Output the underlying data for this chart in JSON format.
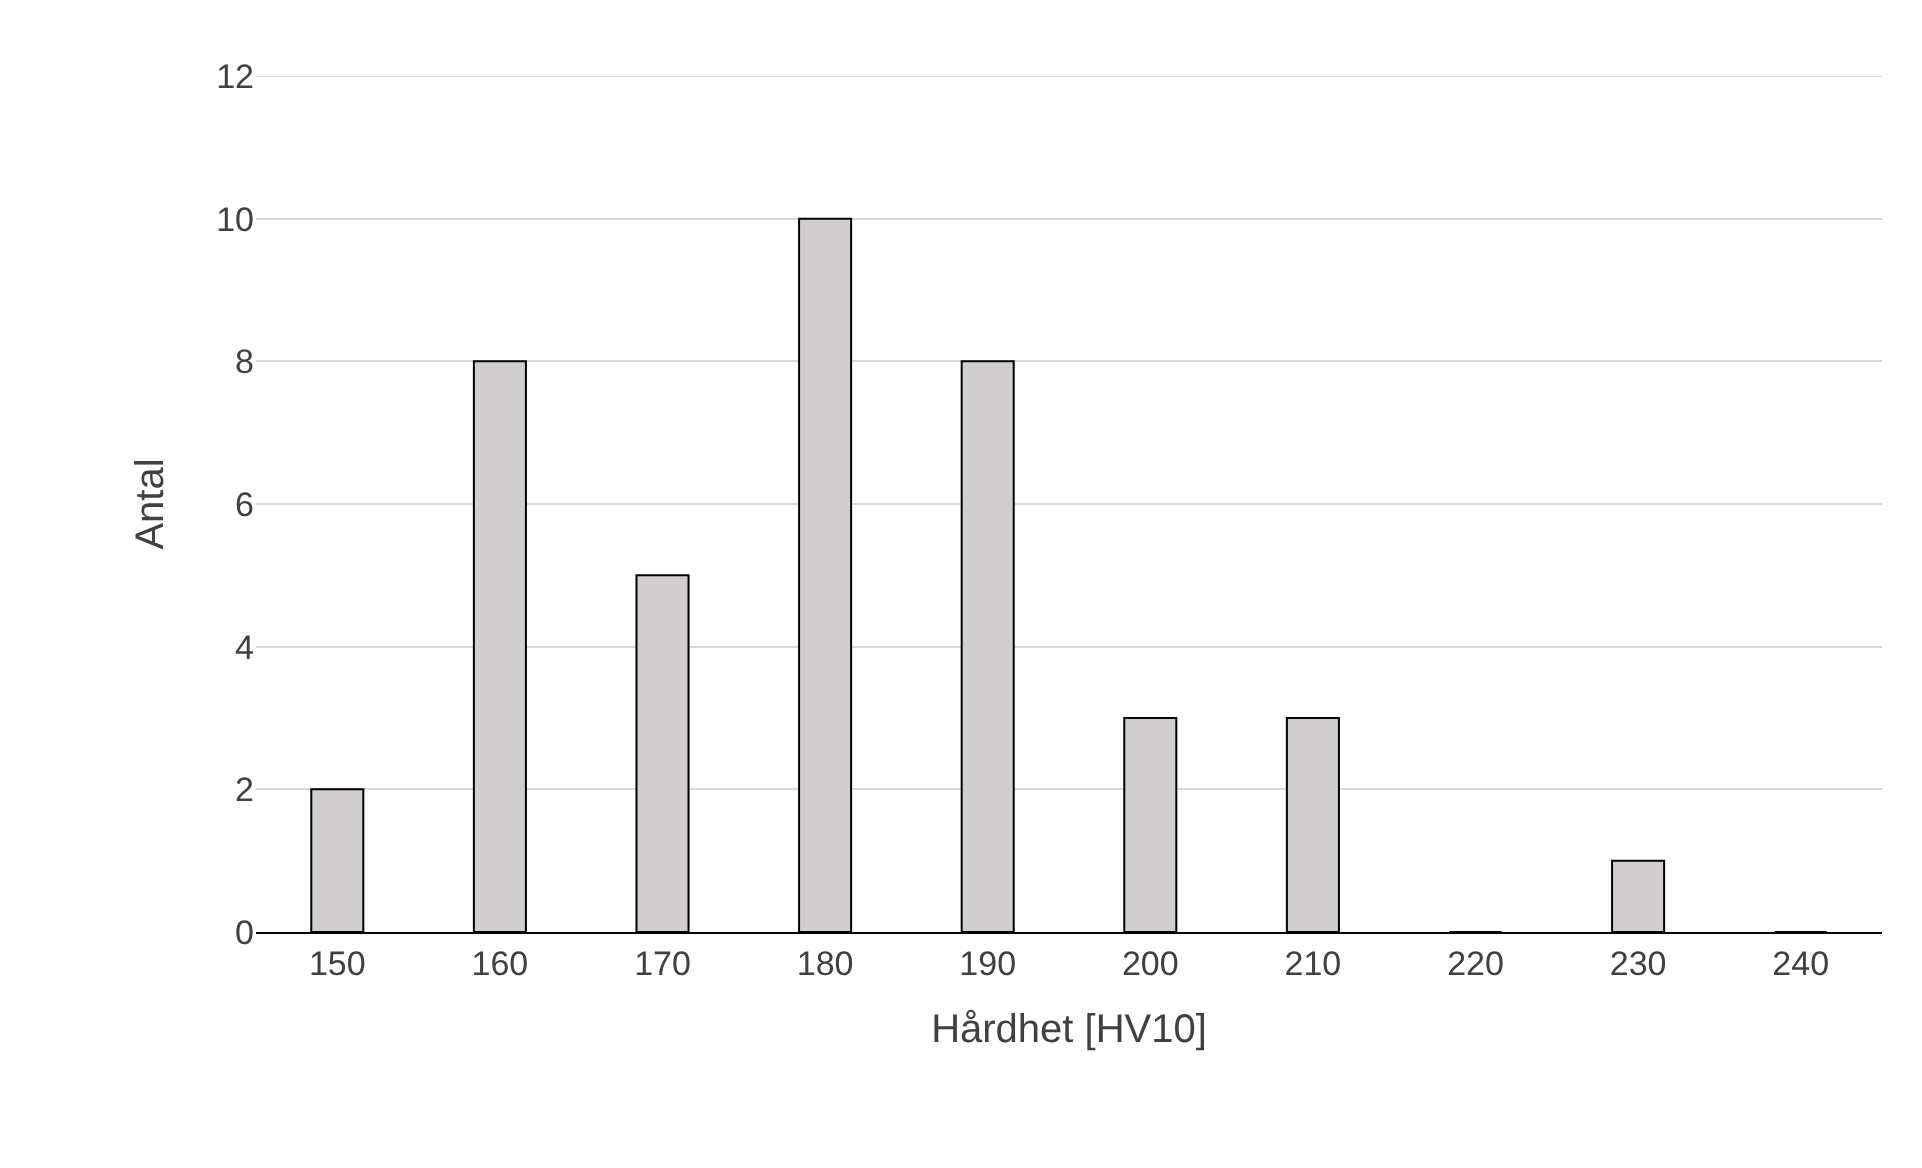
{
  "chart_data": {
    "type": "bar",
    "xlabel": "Hårdhet [HV10]",
    "ylabel": "Antal",
    "categories": [
      "150",
      "160",
      "170",
      "180",
      "190",
      "200",
      "210",
      "220",
      "230",
      "240"
    ],
    "values": [
      2,
      8,
      5,
      10,
      8,
      3,
      3,
      0,
      1,
      0
    ],
    "color": "#d0cece",
    "ylim": [
      0,
      12
    ],
    "yticks": [
      0,
      2,
      4,
      6,
      8,
      10,
      12
    ],
    "grid": "y"
  }
}
